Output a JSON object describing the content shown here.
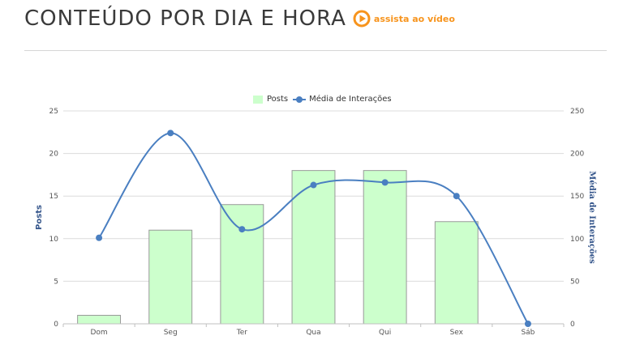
{
  "header": {
    "title": "CONTEÚDO POR DIA E HORA",
    "video_label": "assista ao vídeo",
    "accent_color": "#f7941d",
    "play_icon": "play-circle-icon"
  },
  "chart_data": {
    "type": "bar",
    "categories": [
      "Dom",
      "Seg",
      "Ter",
      "Qua",
      "Qui",
      "Sex",
      "Sáb"
    ],
    "series": [
      {
        "name": "Posts",
        "type": "bar",
        "axis": "left",
        "values": [
          1,
          11,
          14,
          18,
          18,
          12,
          0
        ],
        "color": "#ccffcc",
        "border": "#999999"
      },
      {
        "name": "Média de Interações",
        "type": "line",
        "smooth": true,
        "axis": "right",
        "values": [
          101,
          224,
          111,
          163,
          166,
          150,
          0
        ],
        "color": "#4a7fc1"
      }
    ],
    "y_left": {
      "label": "Posts",
      "min": 0,
      "max": 25,
      "ticks": [
        0,
        5,
        10,
        15,
        20,
        25
      ]
    },
    "y_right": {
      "label": "Média de Interações",
      "min": 0,
      "max": 250,
      "ticks": [
        0,
        50,
        100,
        150,
        200,
        250
      ]
    },
    "grid": true,
    "legend_position": "top-center"
  }
}
